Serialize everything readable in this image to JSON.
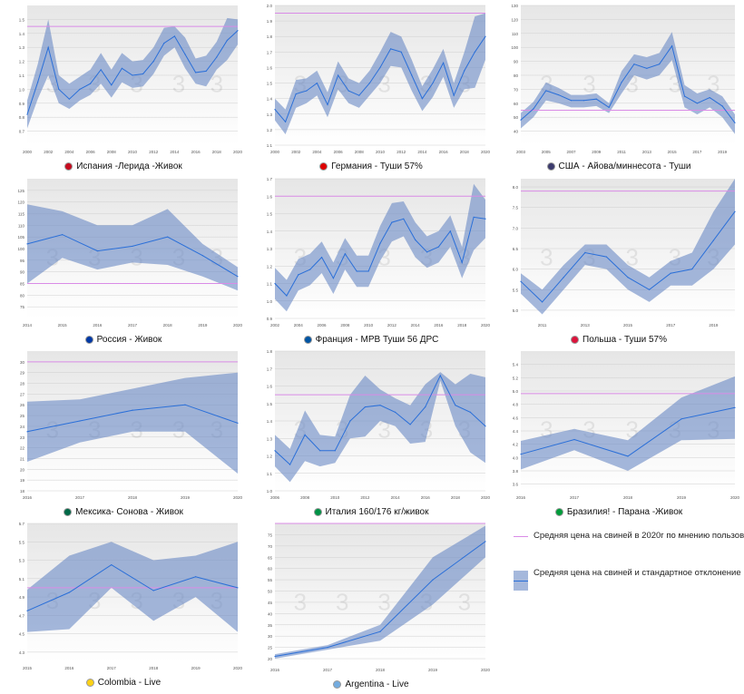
{
  "colors": {
    "band": "#6988c4",
    "mean_line": "#2a6fd8",
    "ref_line": "#d98be6",
    "plot_bg_top": "#e6e6e6",
    "plot_bg_bottom": "#ffffff",
    "grid": "#cfcfcf"
  },
  "legend": {
    "ref_label": "Средняя цена на свиней в 2020г по мнению пользов",
    "band_label": "Средняя цена на свиней и стандартное отклонение"
  },
  "chart_data": [
    {
      "type": "area",
      "caption": "Испания -Лерида -Живок",
      "flag_icon": "spain-flag-icon",
      "flag_color": "#c60b1e",
      "x": [
        2000,
        2001,
        2002,
        2003,
        2004,
        2005,
        2006,
        2007,
        2008,
        2009,
        2010,
        2011,
        2012,
        2013,
        2014,
        2015,
        2016,
        2017,
        2018,
        2019,
        2020
      ],
      "mean": [
        0.82,
        1.05,
        1.3,
        1.0,
        0.93,
        1.0,
        1.04,
        1.14,
        1.03,
        1.15,
        1.1,
        1.11,
        1.2,
        1.33,
        1.38,
        1.25,
        1.12,
        1.13,
        1.23,
        1.35,
        1.42
      ],
      "upper": [
        0.92,
        1.18,
        1.5,
        1.1,
        1.04,
        1.09,
        1.14,
        1.26,
        1.14,
        1.26,
        1.2,
        1.21,
        1.3,
        1.44,
        1.45,
        1.37,
        1.22,
        1.24,
        1.34,
        1.51,
        1.5
      ],
      "lower": [
        0.72,
        0.93,
        1.1,
        0.9,
        0.86,
        0.92,
        0.96,
        1.04,
        0.94,
        1.05,
        1.01,
        1.02,
        1.11,
        1.24,
        1.3,
        1.15,
        1.04,
        1.02,
        1.14,
        1.21,
        1.32
      ],
      "ref": 1.45,
      "ylim": [
        0.6,
        1.6
      ],
      "yticks": [
        0.7,
        0.8,
        0.9,
        1.0,
        1.1,
        1.2,
        1.3,
        1.4,
        1.5
      ],
      "xticks": [
        2000,
        2002,
        2004,
        2006,
        2008,
        2010,
        2012,
        2014,
        2016,
        2018,
        2020
      ],
      "decimals": 1
    },
    {
      "type": "area",
      "caption": "Германия - Туши 57%",
      "flag_icon": "germany-flag-icon",
      "flag_color": "#dd0000",
      "x": [
        2000,
        2001,
        2002,
        2003,
        2004,
        2005,
        2006,
        2007,
        2008,
        2009,
        2010,
        2011,
        2012,
        2013,
        2014,
        2015,
        2016,
        2017,
        2018,
        2019,
        2020
      ],
      "mean": [
        1.33,
        1.25,
        1.43,
        1.45,
        1.5,
        1.36,
        1.55,
        1.45,
        1.42,
        1.5,
        1.6,
        1.72,
        1.7,
        1.55,
        1.4,
        1.5,
        1.63,
        1.42,
        1.58,
        1.7,
        1.8
      ],
      "upper": [
        1.4,
        1.33,
        1.52,
        1.53,
        1.58,
        1.44,
        1.64,
        1.53,
        1.5,
        1.58,
        1.7,
        1.83,
        1.8,
        1.65,
        1.48,
        1.59,
        1.72,
        1.5,
        1.7,
        1.93,
        1.95
      ],
      "lower": [
        1.26,
        1.17,
        1.34,
        1.37,
        1.42,
        1.28,
        1.46,
        1.37,
        1.34,
        1.42,
        1.5,
        1.61,
        1.6,
        1.45,
        1.32,
        1.41,
        1.54,
        1.34,
        1.46,
        1.47,
        1.65
      ],
      "ref": 1.95,
      "ylim": [
        1.1,
        2.0
      ],
      "yticks": [
        1.1,
        1.2,
        1.3,
        1.4,
        1.5,
        1.6,
        1.7,
        1.8,
        1.9,
        2.0
      ],
      "xticks": [
        2000,
        2002,
        2004,
        2006,
        2008,
        2010,
        2012,
        2014,
        2016,
        2018,
        2020
      ],
      "decimals": 1
    },
    {
      "type": "area",
      "caption": "США - Айова/миннесота - Туши",
      "flag_icon": "usa-flag-icon",
      "flag_color": "#3c3b6e",
      "x": [
        2003,
        2004,
        2005,
        2006,
        2007,
        2008,
        2009,
        2010,
        2011,
        2012,
        2013,
        2014,
        2015,
        2016,
        2017,
        2018,
        2019,
        2020
      ],
      "mean": [
        48,
        56,
        69,
        66,
        62,
        62,
        63,
        57,
        75,
        88,
        85,
        88,
        101,
        65,
        60,
        64,
        58,
        46
      ],
      "upper": [
        53,
        61,
        75,
        71,
        66,
        66,
        67,
        60,
        83,
        95,
        93,
        96,
        111,
        73,
        67,
        70,
        65,
        52
      ],
      "lower": [
        42,
        50,
        62,
        60,
        57,
        57,
        58,
        53,
        67,
        80,
        77,
        80,
        91,
        57,
        52,
        57,
        50,
        38
      ],
      "ref": 55,
      "ylim": [
        30,
        130
      ],
      "yticks": [
        40,
        50,
        60,
        70,
        80,
        90,
        100,
        110,
        120,
        130
      ],
      "xticks": [
        2003,
        2005,
        2007,
        2009,
        2011,
        2013,
        2015,
        2017,
        2019
      ],
      "decimals": 0
    },
    {
      "type": "area",
      "caption": "Россия - Живок",
      "flag_icon": "russia-flag-icon",
      "flag_color": "#0039a6",
      "x": [
        2014,
        2015,
        2016,
        2017,
        2018,
        2019,
        2020
      ],
      "mean": [
        102,
        106,
        99,
        101,
        105,
        97,
        88
      ],
      "upper": [
        119,
        116,
        110,
        110,
        117,
        102,
        92
      ],
      "lower": [
        85,
        96,
        91,
        94,
        93,
        88,
        82
      ],
      "ref": 85,
      "ylim": [
        70,
        130
      ],
      "yticks": [
        75,
        80,
        85,
        90,
        95,
        100,
        105,
        110,
        115,
        120,
        125
      ],
      "xticks": [
        2014,
        2015,
        2016,
        2017,
        2018,
        2019,
        2020
      ],
      "decimals": 0
    },
    {
      "type": "area",
      "caption": "Франция - MPB Туши 56 ДРС",
      "flag_icon": "france-flag-icon",
      "flag_color": "#0055a4",
      "x": [
        2002,
        2003,
        2004,
        2005,
        2006,
        2007,
        2008,
        2009,
        2010,
        2011,
        2012,
        2013,
        2014,
        2015,
        2016,
        2017,
        2018,
        2019,
        2020
      ],
      "mean": [
        1.1,
        1.03,
        1.15,
        1.18,
        1.25,
        1.13,
        1.27,
        1.17,
        1.17,
        1.33,
        1.45,
        1.47,
        1.35,
        1.28,
        1.31,
        1.4,
        1.22,
        1.48,
        1.47
      ],
      "upper": [
        1.19,
        1.12,
        1.24,
        1.27,
        1.34,
        1.22,
        1.36,
        1.26,
        1.26,
        1.43,
        1.56,
        1.57,
        1.45,
        1.37,
        1.4,
        1.49,
        1.31,
        1.67,
        1.58
      ],
      "lower": [
        1.01,
        0.94,
        1.06,
        1.09,
        1.16,
        1.04,
        1.18,
        1.08,
        1.08,
        1.23,
        1.34,
        1.37,
        1.25,
        1.19,
        1.22,
        1.31,
        1.13,
        1.29,
        1.36
      ],
      "ref": 1.6,
      "ylim": [
        0.9,
        1.7
      ],
      "yticks": [
        0.9,
        1.0,
        1.1,
        1.2,
        1.3,
        1.4,
        1.5,
        1.6,
        1.7
      ],
      "xticks": [
        2002,
        2004,
        2006,
        2008,
        2010,
        2012,
        2014,
        2016,
        2018,
        2020
      ],
      "decimals": 1
    },
    {
      "type": "area",
      "caption": "Польша - Туши 57%",
      "flag_icon": "poland-flag-icon",
      "flag_color": "#dc143c",
      "x": [
        2010,
        2011,
        2012,
        2013,
        2014,
        2015,
        2016,
        2017,
        2018,
        2019,
        2020
      ],
      "mean": [
        5.7,
        5.2,
        5.8,
        6.4,
        6.3,
        5.8,
        5.5,
        5.9,
        6.0,
        6.7,
        7.4
      ],
      "upper": [
        5.9,
        5.5,
        6.1,
        6.6,
        6.6,
        6.1,
        5.8,
        6.2,
        6.4,
        7.4,
        8.2
      ],
      "lower": [
        5.4,
        4.9,
        5.5,
        6.1,
        6.0,
        5.5,
        5.2,
        5.6,
        5.6,
        6.0,
        6.6
      ],
      "ref": 7.9,
      "ylim": [
        4.8,
        8.2
      ],
      "yticks": [
        5.0,
        5.5,
        6.0,
        6.5,
        7.0,
        7.5,
        8.0
      ],
      "xticks": [
        2011,
        2013,
        2015,
        2017,
        2019
      ],
      "decimals": 1
    },
    {
      "type": "area",
      "caption": "Мексика- Сонова - Живок",
      "flag_icon": "mexico-flag-icon",
      "flag_color": "#006847",
      "x": [
        2016,
        2017,
        2018,
        2019,
        2020
      ],
      "mean": [
        23.5,
        24.5,
        25.5,
        26.0,
        24.3
      ],
      "upper": [
        26.3,
        26.5,
        27.5,
        28.5,
        29.0
      ],
      "lower": [
        20.7,
        22.5,
        23.5,
        23.5,
        19.6
      ],
      "ref": 30,
      "ylim": [
        18,
        31
      ],
      "yticks": [
        18,
        19,
        20,
        21,
        22,
        23,
        24,
        25,
        26,
        27,
        28,
        29,
        30
      ],
      "xticks": [
        2016,
        2017,
        2018,
        2019,
        2020
      ],
      "decimals": 0
    },
    {
      "type": "area",
      "caption": "Италия 160/176 кг/живок",
      "flag_icon": "italy-flag-icon",
      "flag_color": "#009246",
      "x": [
        2006,
        2007,
        2008,
        2009,
        2010,
        2011,
        2012,
        2013,
        2014,
        2015,
        2016,
        2017,
        2018,
        2019,
        2020
      ],
      "mean": [
        1.23,
        1.15,
        1.32,
        1.23,
        1.23,
        1.4,
        1.48,
        1.49,
        1.45,
        1.38,
        1.48,
        1.66,
        1.49,
        1.45,
        1.37
      ],
      "upper": [
        1.32,
        1.24,
        1.46,
        1.32,
        1.31,
        1.55,
        1.66,
        1.58,
        1.53,
        1.49,
        1.61,
        1.68,
        1.61,
        1.67,
        1.65
      ],
      "lower": [
        1.14,
        1.05,
        1.17,
        1.14,
        1.16,
        1.3,
        1.31,
        1.4,
        1.37,
        1.27,
        1.28,
        1.63,
        1.37,
        1.22,
        1.16
      ],
      "ref": 1.55,
      "ylim": [
        1.0,
        1.8
      ],
      "yticks": [
        1.0,
        1.1,
        1.2,
        1.3,
        1.4,
        1.5,
        1.6,
        1.7,
        1.8
      ],
      "xticks": [
        2006,
        2008,
        2010,
        2012,
        2014,
        2016,
        2018,
        2020
      ],
      "decimals": 1
    },
    {
      "type": "area",
      "caption": "Бразилия! - Парана -Живок",
      "flag_icon": "brazil-flag-icon",
      "flag_color": "#009c3b",
      "x": [
        2016,
        2017,
        2018,
        2019,
        2020
      ],
      "mean": [
        4.05,
        4.27,
        4.02,
        4.58,
        4.75
      ],
      "upper": [
        4.25,
        4.43,
        4.26,
        4.9,
        5.22
      ],
      "lower": [
        3.82,
        4.11,
        3.8,
        4.26,
        4.28
      ],
      "ref": 4.96,
      "ylim": [
        3.5,
        5.6
      ],
      "yticks": [
        3.6,
        3.8,
        4.0,
        4.2,
        4.4,
        4.6,
        4.8,
        5.0,
        5.2,
        5.4
      ],
      "xticks": [
        2016,
        2017,
        2018,
        2019,
        2020
      ],
      "decimals": 1
    },
    {
      "type": "area",
      "caption": "Colombia - Live",
      "flag_icon": "colombia-flag-icon",
      "flag_color": "#fcd116",
      "x": [
        2015,
        2016,
        2017,
        2018,
        2019,
        2020
      ],
      "mean": [
        4.75,
        4.95,
        5.25,
        4.97,
        5.12,
        5.0
      ],
      "upper": [
        4.98,
        5.35,
        5.5,
        5.3,
        5.35,
        5.5
      ],
      "lower": [
        4.52,
        4.55,
        5.0,
        4.64,
        4.9,
        4.52
      ],
      "ref": 5.0,
      "ylim": [
        4.2,
        5.7
      ],
      "yticks": [
        4.3,
        4.5,
        4.7,
        4.9,
        5.1,
        5.3,
        5.5,
        5.7
      ],
      "xticks": [
        2015,
        2016,
        2017,
        2018,
        2019,
        2020
      ],
      "decimals": 1
    },
    {
      "type": "area",
      "caption": "Argentina - Live",
      "flag_icon": "argentina-flag-icon",
      "flag_color": "#74acdf",
      "x": [
        2016,
        2017,
        2018,
        2019,
        2020
      ],
      "mean": [
        21,
        25,
        32,
        55,
        72
      ],
      "upper": [
        22,
        26,
        35,
        65,
        79
      ],
      "lower": [
        20,
        24,
        28,
        44,
        65
      ],
      "ref": 80,
      "ylim": [
        18,
        80
      ],
      "yticks": [
        20,
        25,
        30,
        35,
        40,
        45,
        50,
        55,
        60,
        65,
        70,
        75
      ],
      "xticks": [
        2016,
        2017,
        2018,
        2019,
        2020
      ],
      "decimals": 0
    }
  ]
}
